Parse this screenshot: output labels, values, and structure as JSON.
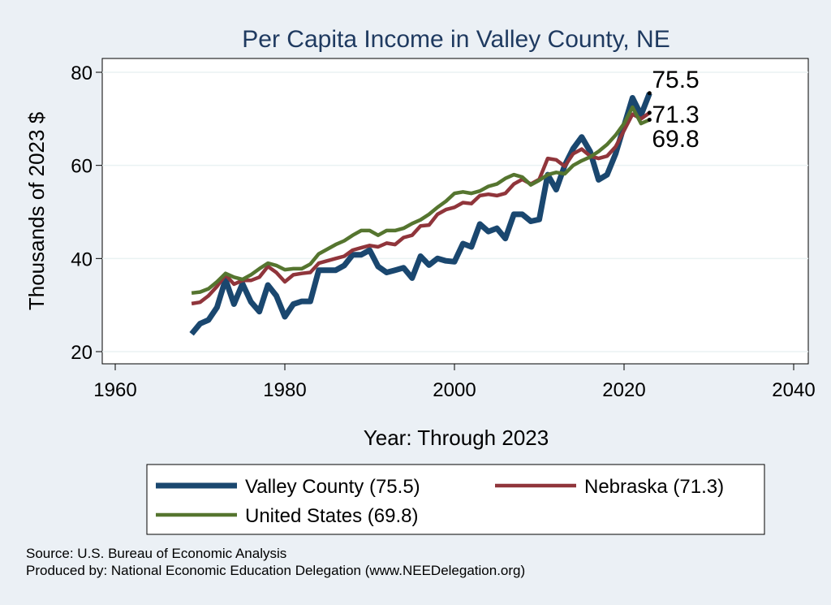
{
  "chart_data": {
    "type": "line",
    "title": "Per Capita Income in Valley County, NE",
    "xlabel": "Year: Through 2023",
    "ylabel": "Thousands of 2023 $",
    "xlim": [
      1960,
      2040
    ],
    "ylim": [
      20,
      80
    ],
    "xticks": [
      1960,
      1980,
      2000,
      2020,
      2040
    ],
    "yticks": [
      20,
      40,
      60,
      80
    ],
    "grid": true,
    "legend_position": "bottom",
    "x": [
      1969,
      1970,
      1971,
      1972,
      1973,
      1974,
      1975,
      1976,
      1977,
      1978,
      1979,
      1980,
      1981,
      1982,
      1983,
      1984,
      1985,
      1986,
      1987,
      1988,
      1989,
      1990,
      1991,
      1992,
      1993,
      1994,
      1995,
      1996,
      1997,
      1998,
      1999,
      2000,
      2001,
      2002,
      2003,
      2004,
      2005,
      2006,
      2007,
      2008,
      2009,
      2010,
      2011,
      2012,
      2013,
      2014,
      2015,
      2016,
      2017,
      2018,
      2019,
      2020,
      2021,
      2022,
      2023
    ],
    "series": [
      {
        "name": "Valley County (75.5)",
        "end_label": "75.5",
        "color": "#1a476f",
        "values": [
          23.8,
          26.0,
          26.8,
          29.5,
          35.5,
          30.2,
          34.6,
          30.7,
          28.6,
          34.3,
          32.0,
          27.5,
          30.2,
          30.8,
          30.8,
          37.5,
          37.5,
          37.5,
          38.5,
          40.8,
          40.8,
          41.8,
          38.3,
          37.0,
          37.5,
          38.0,
          35.8,
          40.5,
          38.6,
          40.0,
          39.5,
          39.3,
          43.2,
          42.5,
          47.4,
          45.8,
          46.5,
          44.3,
          49.5,
          49.5,
          48.0,
          48.4,
          58.0,
          54.8,
          60.0,
          63.6,
          66.1,
          63.0,
          56.9,
          58.0,
          62.5,
          68.5,
          74.5,
          70.8,
          75.5
        ]
      },
      {
        "name": "Nebraska (71.3)",
        "end_label": "71.3",
        "color": "#90353b",
        "values": [
          30.3,
          30.6,
          32.0,
          34.0,
          36.5,
          34.5,
          35.3,
          35.3,
          36.0,
          38.3,
          37.0,
          35.0,
          36.5,
          36.8,
          37.0,
          39.0,
          39.5,
          40.0,
          40.5,
          41.8,
          42.3,
          42.8,
          42.5,
          43.3,
          43.0,
          44.5,
          45.0,
          47.0,
          47.2,
          49.5,
          50.5,
          51.0,
          52.0,
          51.8,
          53.5,
          53.8,
          53.5,
          54.0,
          56.0,
          57.0,
          56.0,
          57.0,
          61.5,
          61.2,
          59.8,
          62.5,
          63.5,
          62.0,
          61.5,
          62.0,
          64.0,
          67.5,
          71.0,
          70.0,
          71.3
        ]
      },
      {
        "name": "United States (69.8)",
        "end_label": "69.8",
        "color": "#55752f",
        "values": [
          32.6,
          32.8,
          33.5,
          35.0,
          36.8,
          36.0,
          35.5,
          36.5,
          37.8,
          39.0,
          38.5,
          37.6,
          37.8,
          37.8,
          38.8,
          41.0,
          42.0,
          43.0,
          43.8,
          45.0,
          46.0,
          46.0,
          45.0,
          46.0,
          46.0,
          46.5,
          47.5,
          48.3,
          49.5,
          51.0,
          52.3,
          54.0,
          54.3,
          54.0,
          54.5,
          55.5,
          56.0,
          57.2,
          58.0,
          57.5,
          55.8,
          56.8,
          58.0,
          58.5,
          58.2,
          60.0,
          61.0,
          61.8,
          63.0,
          64.5,
          66.5,
          69.0,
          72.5,
          69.0,
          69.8
        ]
      }
    ]
  },
  "footer": {
    "source": "Source: U.S. Bureau of Economic Analysis",
    "produced_by": "Produced by: National Economic Education Delegation (www.NEEDelegation.org)"
  }
}
